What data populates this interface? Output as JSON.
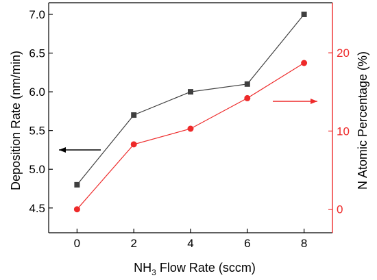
{
  "chart_data": {
    "type": "line",
    "x": [
      0,
      2,
      4,
      6,
      8
    ],
    "xlabel": {
      "main": "NH",
      "sub": "3",
      "rest": " Flow Rate (sccm)"
    },
    "xlim": [
      -1,
      9
    ],
    "xticks": [
      "0",
      "2",
      "4",
      "6",
      "8"
    ],
    "y_left": {
      "label": "Deposition Rate (nm/min)",
      "ylim": [
        4.18,
        7.15
      ],
      "ticks": [
        "4.5",
        "5.0",
        "5.5",
        "6.0",
        "6.5",
        "7.0"
      ],
      "color": "#000000"
    },
    "y_right": {
      "label": "N Atomic Percentage (%)",
      "ylim": [
        -3,
        26.4
      ],
      "ticks": [
        "0",
        "10",
        "20"
      ],
      "color": "#ee2a2a"
    },
    "series": [
      {
        "axis": "left",
        "marker": "square",
        "color": "#3f3f3f",
        "values": [
          4.8,
          5.7,
          6.0,
          6.1,
          7.0
        ]
      },
      {
        "axis": "right",
        "marker": "circle",
        "color": "#ee2a2a",
        "values": [
          0,
          8.3,
          10.3,
          14.2,
          18.7
        ]
      }
    ],
    "annotations": [
      {
        "type": "arrow",
        "direction": "left",
        "color": "#000000",
        "points_to": "left axis"
      },
      {
        "type": "arrow",
        "direction": "right",
        "color": "#ee2a2a",
        "points_to": "right axis"
      }
    ]
  }
}
